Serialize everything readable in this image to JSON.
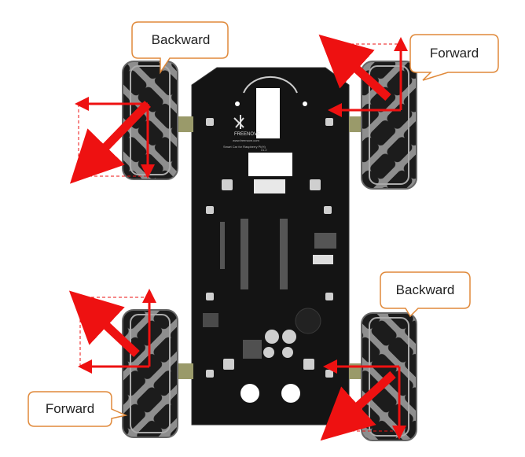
{
  "labels": {
    "top_left": "Backward",
    "top_right": "Forward",
    "bottom_right": "Backward",
    "bottom_left": "Forward"
  },
  "board": {
    "brand": "FREENOVE",
    "website": "www.freenove.com",
    "subtitle": "Smart Car for Raspberry Pi(H)",
    "version": "v1.2"
  },
  "colors": {
    "arrow": "#ee1111",
    "callout_border": "#e0893a",
    "board": "#141414",
    "wheel_hub": "#9a9a9a",
    "roller": "#1c1c1c"
  }
}
